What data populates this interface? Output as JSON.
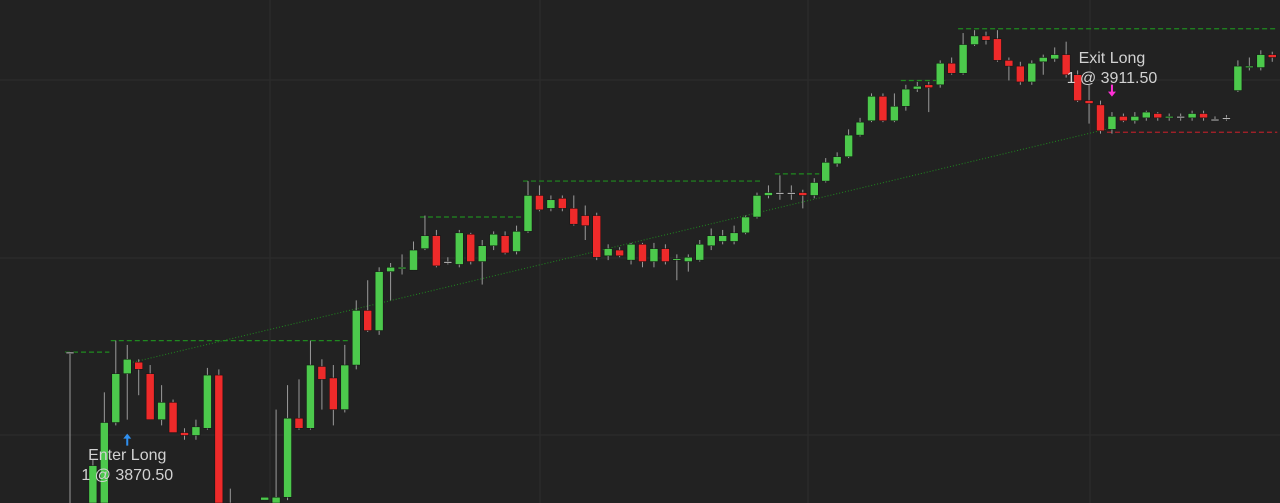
{
  "chart_data": {
    "type": "candlestick",
    "up_color": "#4cc94c",
    "down_color": "#ee2a2a",
    "neutral_color": "#c8c8c8",
    "ylim": [
      3846.25,
      3933.75
    ],
    "open": [
      3872.5,
      null,
      3846.25,
      3846.25,
      3860.25,
      3868.75,
      3870.75,
      3868.75,
      3860.75,
      3863.75,
      3858.5,
      3858,
      3859.25,
      3868.5,
      3846.25,
      null,
      null,
      3846.75,
      3846.25,
      3847.25,
      3861,
      3859.25,
      3870,
      3868,
      3862.5,
      3870.25,
      3879.75,
      3876.25,
      3886.5,
      3887,
      3886.75,
      3890.5,
      3892.75,
      3888.25,
      3887.75,
      3893,
      3888.25,
      3891,
      3892.75,
      3890,
      3893.5,
      3899.75,
      3897.5,
      3899.25,
      3897.5,
      3896.25,
      3896.25,
      3889.25,
      3890.25,
      3888.5,
      3891.25,
      3888.25,
      3890.5,
      3888.5,
      3888.25,
      3888.5,
      3891,
      3891.75,
      3891.75,
      3893.25,
      3896,
      3899.75,
      3900.25,
      3900.25,
      3900.25,
      3899.75,
      3902.25,
      3905.25,
      3906.5,
      3910.25,
      3912.75,
      3917,
      3912.75,
      3915.25,
      3918.25,
      3919,
      3919,
      3922.75,
      3921,
      3926,
      3927.5,
      3927,
      3923.25,
      3922.25,
      3919.5,
      3923,
      3923.5,
      3924.25,
      3920.75,
      3916.25,
      3915.5,
      3911.25,
      3913.5,
      3912.75,
      3913.25,
      3914,
      3913.25,
      3913.5,
      3913.25,
      3914,
      3913,
      3913.25,
      3918,
      3922,
      3922,
      3924.25
    ],
    "high": [
      3872.5,
      null,
      3853.75,
      3865.5,
      3874.5,
      3873.75,
      3871.25,
      3870.25,
      3866.75,
      3864.25,
      3859.25,
      3860.75,
      3869.75,
      3869.5,
      3848.75,
      null,
      null,
      3847.25,
      3862.5,
      3866.75,
      3867.75,
      3874.5,
      3871.25,
      3870.25,
      3873.75,
      3881.5,
      3885,
      3887.25,
      3888,
      3889.5,
      3891.75,
      3896.25,
      3893.75,
      3889,
      3893.75,
      3893.25,
      3892,
      3893.5,
      3893.5,
      3894.5,
      3902.25,
      3901.5,
      3899.75,
      3899.75,
      3899.75,
      3898,
      3896.75,
      3891.25,
      3890.75,
      3891.5,
      3891.5,
      3891.5,
      3891.25,
      3889.5,
      3889.5,
      3892,
      3894,
      3893.75,
      3894.5,
      3896.25,
      3900.25,
      3901.5,
      3903.25,
      3901.5,
      3900.75,
      3902.75,
      3906.25,
      3907.25,
      3911.25,
      3913.25,
      3917.5,
      3917.5,
      3917.5,
      3919,
      3919.5,
      3919.5,
      3923.25,
      3923.75,
      3928,
      3928.5,
      3928.25,
      3928.5,
      3923.75,
      3923,
      3923.25,
      3924.25,
      3925.5,
      3926.5,
      3921.5,
      3919,
      3916.25,
      3914.25,
      3914,
      3914.25,
      3914.5,
      3914.25,
      3914,
      3914,
      3914.5,
      3914.5,
      3913.5,
      3913.75,
      3923.25,
      3923.75,
      3925,
      3924.75
    ],
    "low": [
      3846.25,
      null,
      3846.25,
      3846.25,
      3859.75,
      3860.75,
      3865,
      3860.75,
      3859.75,
      3858.5,
      3857.25,
      3857.25,
      3859,
      3846.25,
      3846.25,
      null,
      null,
      3846.75,
      3846.25,
      3846.75,
      3859,
      3859,
      3862.5,
      3859.75,
      3862,
      3869.5,
      3876,
      3875.5,
      3881.5,
      3886,
      3886.75,
      3890.25,
      3887.25,
      3887.75,
      3887.25,
      3887.75,
      3884.25,
      3890.25,
      3889.5,
      3889.5,
      3893.25,
      3897,
      3897,
      3897,
      3894.5,
      3892,
      3888.5,
      3888.5,
      3889,
      3887.75,
      3887.25,
      3887.25,
      3887.75,
      3885,
      3886.5,
      3888.25,
      3890.25,
      3891.25,
      3891.25,
      3893,
      3895.75,
      3899.25,
      3899,
      3899,
      3897.5,
      3899.25,
      3902,
      3904.75,
      3906.25,
      3910,
      3912.5,
      3912.5,
      3912.5,
      3914.5,
      3917.75,
      3914.25,
      3918.5,
      3920.75,
      3920.75,
      3925.75,
      3926,
      3923,
      3919.75,
      3919,
      3919,
      3920.75,
      3923,
      3920.25,
      3916,
      3912.25,
      3910.5,
      3910.5,
      3912.5,
      3912.25,
      3912.75,
      3912.75,
      3912.75,
      3912.75,
      3912.75,
      3912.75,
      3912.75,
      3912.75,
      3917.75,
      3921.5,
      3921.5,
      3923
    ],
    "close": [
      3872.5,
      null,
      3852.75,
      3860.25,
      3868.75,
      3871.25,
      3869.5,
      3860.75,
      3863.75,
      3858.5,
      3858,
      3859.5,
      3868.5,
      3846.25,
      3846.25,
      null,
      null,
      3847.25,
      3847.25,
      3861,
      3859.25,
      3870.25,
      3867.75,
      3862.5,
      3870.25,
      3879.75,
      3876.25,
      3886.5,
      3887.25,
      3887.25,
      3890.25,
      3892.75,
      3887.5,
      3888.25,
      3893.25,
      3888.25,
      3891,
      3893,
      3889.75,
      3893.5,
      3899.75,
      3897.25,
      3899,
      3897.5,
      3894.75,
      3894.5,
      3889,
      3890.5,
      3889.25,
      3891.25,
      3888.25,
      3890.5,
      3888.25,
      3888.75,
      3889,
      3891.25,
      3892.75,
      3892.75,
      3893.25,
      3896,
      3899.75,
      3900.25,
      3900.25,
      3900.25,
      3899.75,
      3902,
      3905.5,
      3906.5,
      3910.25,
      3912.5,
      3917,
      3912.75,
      3915.25,
      3918.25,
      3918.75,
      3918.5,
      3922.75,
      3921,
      3926,
      3927.5,
      3926.75,
      3923.25,
      3922.25,
      3919.5,
      3922.75,
      3923.75,
      3924.25,
      3920.75,
      3916.25,
      3915.75,
      3911,
      3913.5,
      3912.75,
      3913.5,
      3914.25,
      3913.25,
      3913.5,
      3913.5,
      3914,
      3913.25,
      3913,
      3913.25,
      3922.25,
      3922.25,
      3924.25,
      3923.75
    ],
    "levels": [
      {
        "value": 3872.5,
        "start": 0,
        "end": 3,
        "color": "#1f8a1f"
      },
      {
        "value": 3874.5,
        "start": 4,
        "end": 24,
        "color": "#1f8a1f"
      },
      {
        "value": 3896,
        "start": 31,
        "end": 39,
        "color": "#1f8a1f"
      },
      {
        "value": 3902.25,
        "start": 40,
        "end": 60,
        "color": "#1f8a1f"
      },
      {
        "value": 3903.5,
        "start": 62,
        "end": 65,
        "color": "#1f8a1f"
      },
      {
        "value": 3919.75,
        "start": 73,
        "end": 76,
        "color": "#1f8a1f"
      },
      {
        "value": 3928.75,
        "start": 78,
        "end": 105,
        "color": "#1f8a1f"
      },
      {
        "value": 3910.75,
        "start": 91,
        "end": 105,
        "color": "#b0202a"
      }
    ],
    "trades": [
      {
        "label": "Enter Long",
        "detail": "1 @ 3870.50",
        "price": 3870.5,
        "index": 5,
        "color": "#2f8fef"
      },
      {
        "label": "Exit Long",
        "detail": "1 @ 3911.50",
        "price": 3911.5,
        "index": 91,
        "color": "#ff2fd6"
      }
    ],
    "trade_line_color": "#1f8a1f"
  }
}
